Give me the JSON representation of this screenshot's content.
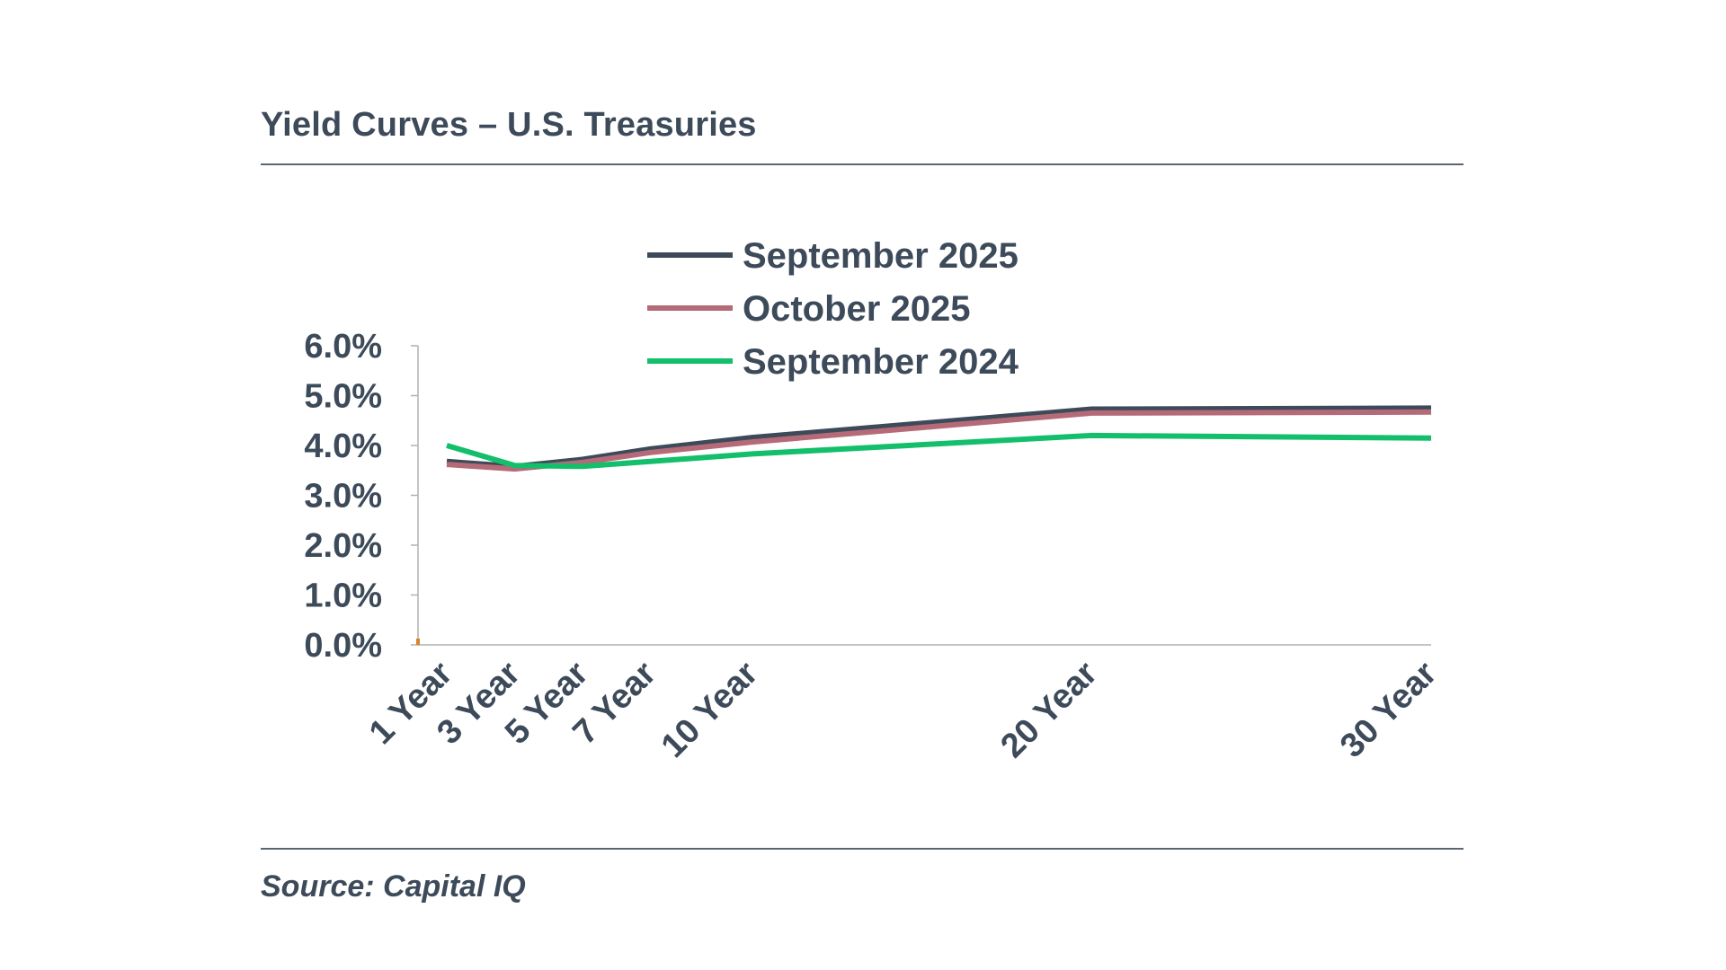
{
  "header": {
    "title": "Yield Curves – U.S. Treasuries"
  },
  "footer": {
    "source": "Source: Capital IQ"
  },
  "chart_data": {
    "type": "line",
    "title": "Yield Curves – U.S. Treasuries",
    "xlabel": "",
    "ylabel": "",
    "categories": [
      "1 Year",
      "3 Year",
      "5 Year",
      "7 Year",
      "10 Year",
      "20 Year",
      "30 Year"
    ],
    "x": [
      1,
      3,
      5,
      7,
      10,
      20,
      30
    ],
    "ylim": [
      0,
      6
    ],
    "yticks": [
      "0.0%",
      "1.0%",
      "2.0%",
      "3.0%",
      "4.0%",
      "5.0%",
      "6.0%"
    ],
    "grid": false,
    "legend_position": "top-center",
    "series": [
      {
        "name": "September 2025",
        "color": "#3d4a5a",
        "values": [
          3.68,
          3.58,
          3.72,
          3.93,
          4.16,
          4.73,
          4.75
        ]
      },
      {
        "name": "October 2025",
        "color": "#b56a78",
        "values": [
          3.62,
          3.53,
          3.66,
          3.86,
          4.07,
          4.65,
          4.67
        ]
      },
      {
        "name": "September 2024",
        "color": "#13bf6b",
        "values": [
          4.0,
          3.6,
          3.58,
          3.68,
          3.83,
          4.2,
          4.15
        ]
      }
    ]
  }
}
